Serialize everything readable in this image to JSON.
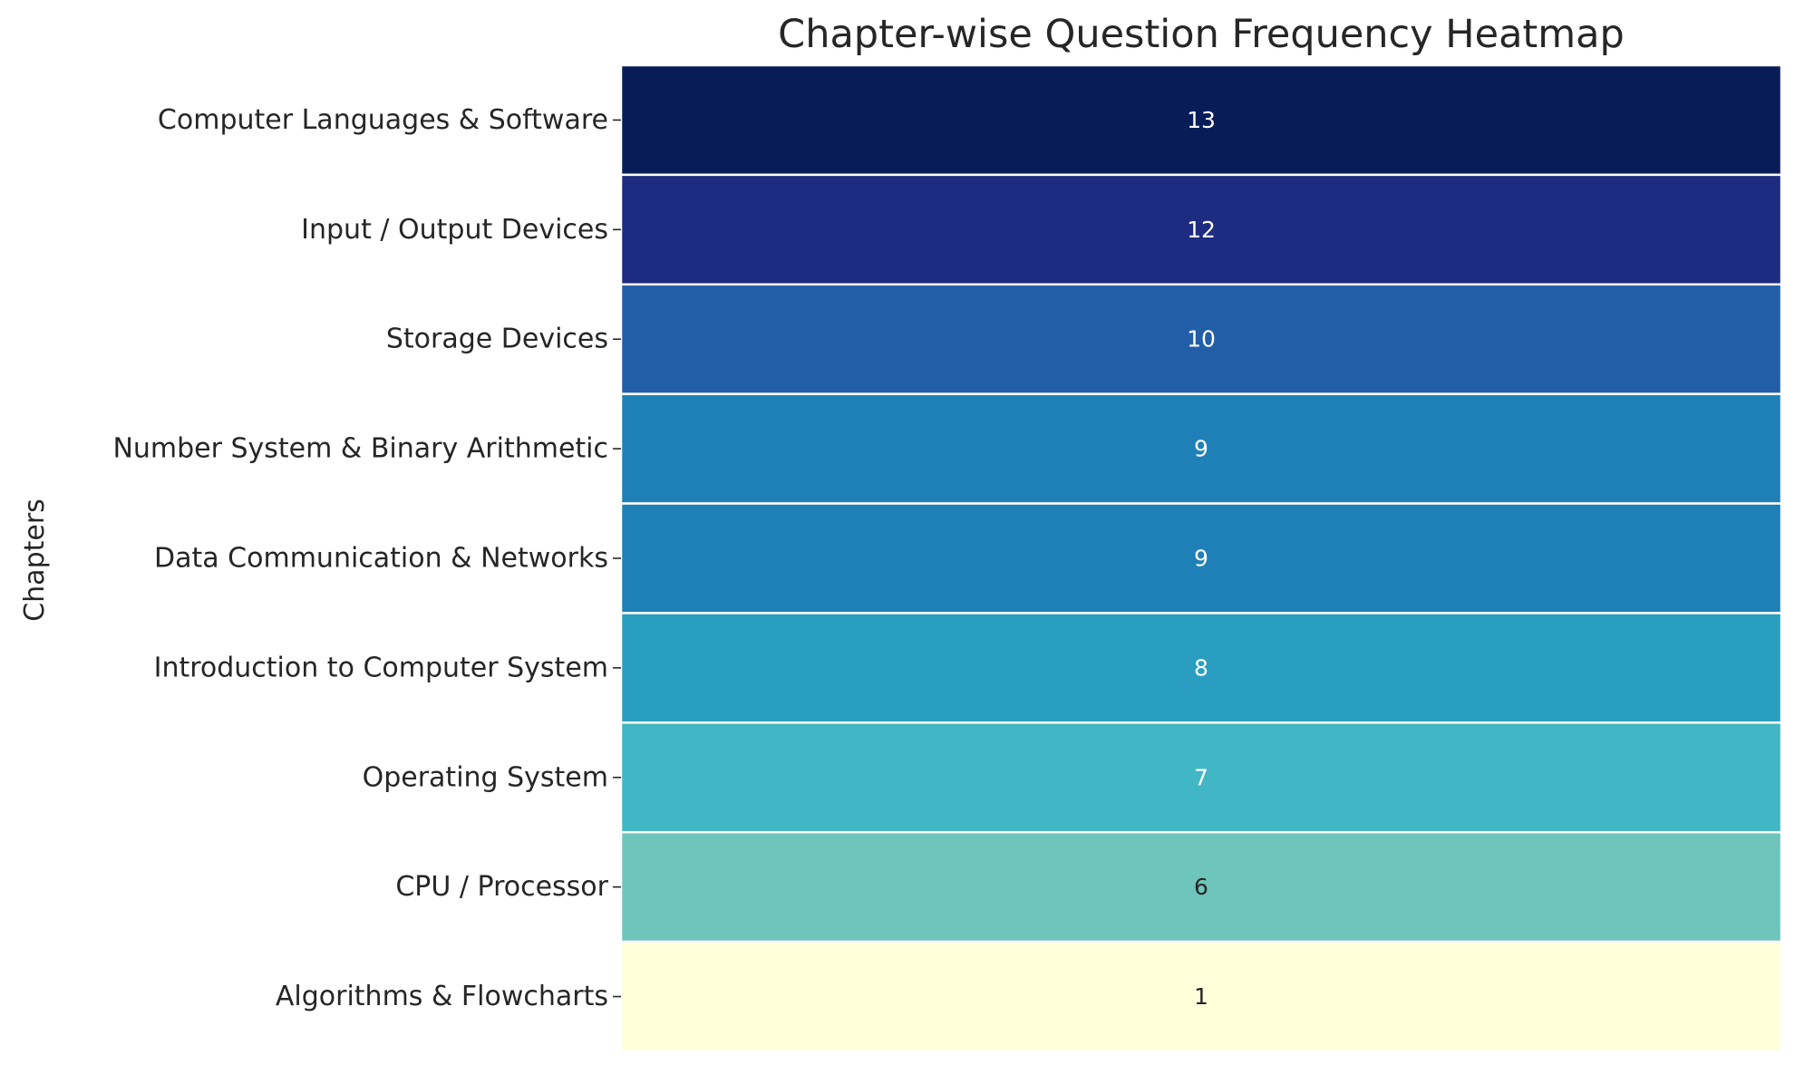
{
  "chart_data": {
    "type": "heatmap",
    "title": "Chapter-wise Question Frequency Heatmap",
    "ylabel": "Chapters",
    "xlabel": "",
    "colormap": "YlGnBu",
    "categories": [
      "Computer Languages & Software",
      "Input / Output Devices",
      "Storage Devices",
      "Number System & Binary Arithmetic",
      "Data Communication & Networks",
      "Introduction to Computer System",
      "Operating System",
      "CPU / Processor",
      "Algorithms & Flowcharts"
    ],
    "values": [
      13,
      12,
      10,
      9,
      9,
      8,
      7,
      6,
      1
    ],
    "vmin": 1,
    "vmax": 13,
    "annotations_shown": true,
    "colorbar": false,
    "grid": false,
    "cell_colors": [
      "#081d58",
      "#1d2b80",
      "#225ea8",
      "#1f80b8",
      "#1f80b8",
      "#2a9ec1",
      "#41b6c4",
      "#6ec5bb",
      "#ffffd9"
    ],
    "annotation_colors": [
      "#ffffff",
      "#ffffff",
      "#ffffff",
      "#ffffff",
      "#ffffff",
      "#ffffff",
      "#ffffff",
      "#262626",
      "#262626"
    ]
  }
}
